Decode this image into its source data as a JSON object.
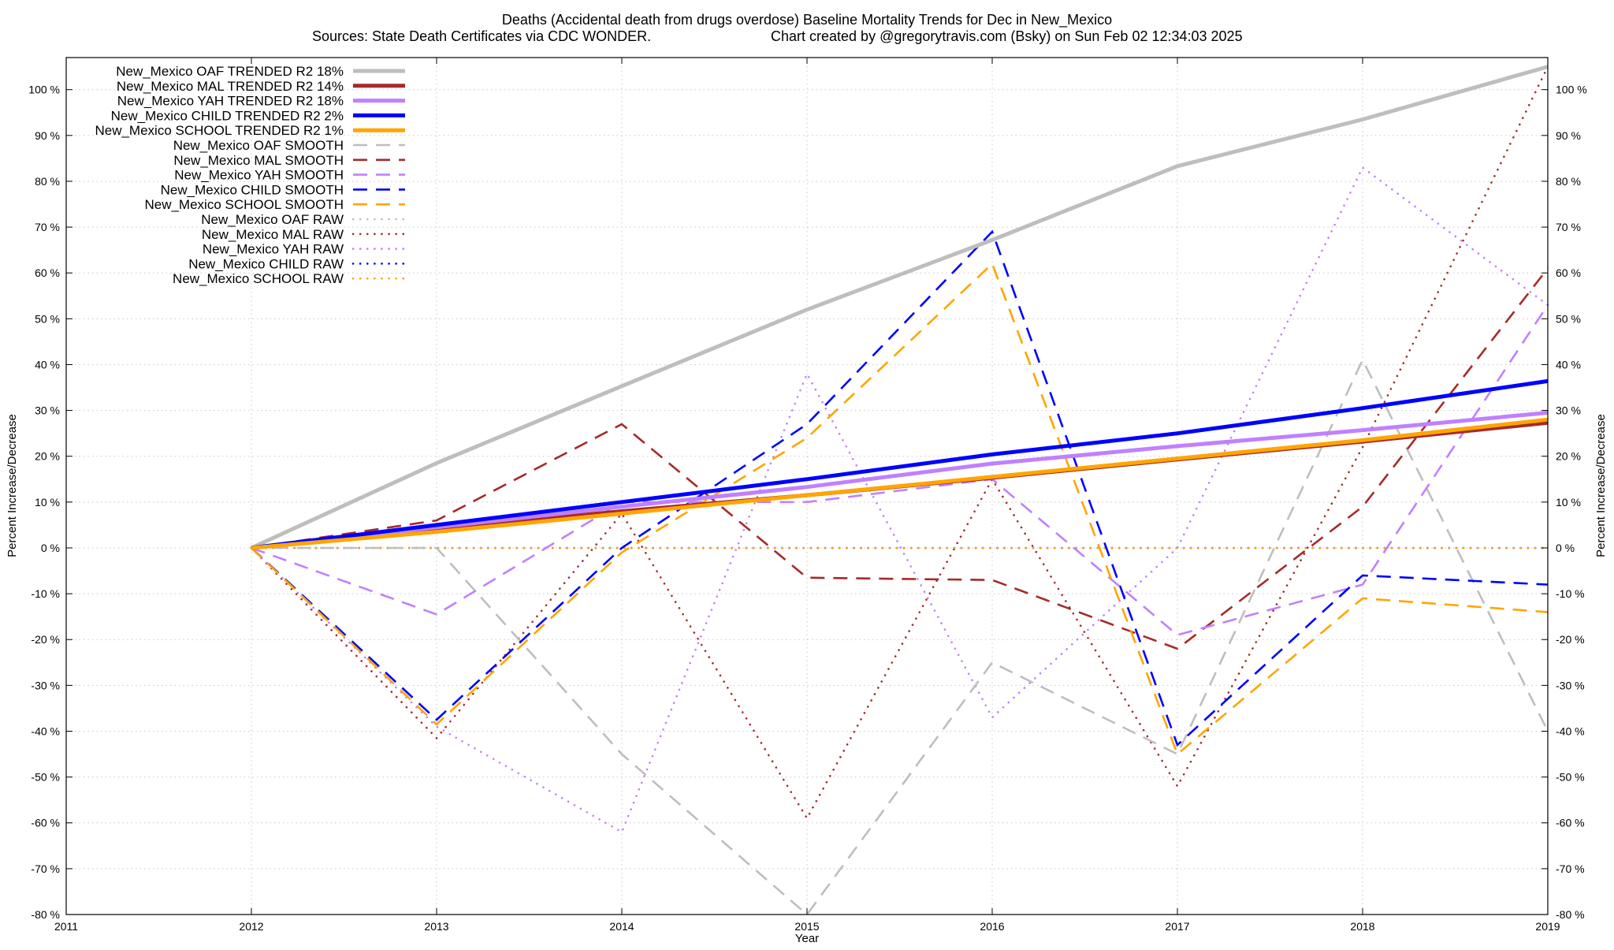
{
  "chart_data": {
    "type": "line",
    "title": "Deaths (Accidental death from drugs overdose)  Baseline Mortality Trends for Dec in New_Mexico",
    "subtitle_left": "Sources: State Death Certificates via CDC WONDER.",
    "subtitle_right": "Chart created by @gregorytravis.com (Bsky) on Sun Feb 02 12:34:03 2025",
    "xlabel": "Year",
    "ylabel_left": "Percent Increase/Decrease",
    "ylabel_right": "Percent Increase/Decrease",
    "xlim": [
      2011,
      2019
    ],
    "ylim": [
      -80,
      107
    ],
    "x_ticks": [
      "2011",
      "2012",
      "2013",
      "2014",
      "2015",
      "2016",
      "2017",
      "2018",
      "2019"
    ],
    "y_ticks": [
      "-80 %",
      "-70 %",
      "-60 %",
      "-50 %",
      "-40 %",
      "-30 %",
      "-20 %",
      "-10 %",
      "0 %",
      "10 %",
      "20 %",
      "30 %",
      "40 %",
      "50 %",
      "60 %",
      "70 %",
      "80 %",
      "90 %",
      "100 %"
    ],
    "grid": true,
    "legend_position": "top-left",
    "x": [
      2012,
      2013,
      2014,
      2015,
      2016,
      2017,
      2018,
      2019
    ],
    "series": [
      {
        "name": "New_Mexico OAF TRENDED R2  18%",
        "style": "solid",
        "color": "#bebebe",
        "values": [
          0,
          18.5,
          35.3,
          52.0,
          67.2,
          83.3,
          93.5,
          105
        ]
      },
      {
        "name": "New_Mexico MAL TRENDED R2  14%",
        "style": "solid",
        "color": "#a52a2a",
        "values": [
          0,
          4.2,
          8.0,
          11.5,
          15.3,
          19.3,
          23.2,
          27.3
        ]
      },
      {
        "name": "New_Mexico YAH TRENDED R2  18%",
        "style": "solid",
        "color": "#c080ff",
        "values": [
          0,
          4.5,
          9.0,
          13.3,
          18.4,
          22.2,
          25.7,
          29.5
        ]
      },
      {
        "name": "New_Mexico CHILD TRENDED R2  2%",
        "style": "solid",
        "color": "#0000ff",
        "values": [
          0,
          5.0,
          10.0,
          15.0,
          20.4,
          25.0,
          30.5,
          36.4
        ]
      },
      {
        "name": "New_Mexico SCHOOL TRENDED R2  1%",
        "style": "solid",
        "color": "#ffa500",
        "values": [
          0,
          3.5,
          7.5,
          11.5,
          15.5,
          19.5,
          23.5,
          28.0
        ]
      },
      {
        "name": "New_Mexico OAF SMOOTH",
        "style": "dashed",
        "color": "#bebebe",
        "values": [
          0,
          0,
          -45,
          -80,
          -25,
          -45,
          41,
          -40
        ]
      },
      {
        "name": "New_Mexico MAL SMOOTH",
        "style": "dashed",
        "color": "#a52a2a",
        "values": [
          0,
          6,
          27,
          -6.5,
          -7,
          -22,
          9,
          61
        ]
      },
      {
        "name": "New_Mexico YAH SMOOTH",
        "style": "dashed",
        "color": "#c080ff",
        "values": [
          0,
          -14.5,
          10,
          10,
          15,
          -19,
          -8,
          53
        ]
      },
      {
        "name": "New_Mexico CHILD SMOOTH",
        "style": "dashed",
        "color": "#0000ff",
        "values": [
          0,
          -37.5,
          0,
          27,
          69,
          -43,
          -6,
          -8
        ]
      },
      {
        "name": "New_Mexico SCHOOL SMOOTH",
        "style": "dashed",
        "color": "#ffa500",
        "values": [
          0,
          -38.5,
          -1,
          24,
          62,
          -45,
          -11,
          -14
        ]
      },
      {
        "name": "New_Mexico OAF RAW",
        "style": "dotted",
        "color": "#bebebe",
        "values": [
          0,
          0,
          0,
          0,
          0,
          0,
          0,
          0
        ]
      },
      {
        "name": "New_Mexico MAL RAW",
        "style": "dotted",
        "color": "#a52a2a",
        "values": [
          0,
          -41.5,
          7.5,
          -59,
          15,
          -52,
          22,
          105
        ]
      },
      {
        "name": "New_Mexico YAH RAW",
        "style": "dotted",
        "color": "#c080ff",
        "values": [
          0,
          -39,
          -62,
          38,
          -37,
          0,
          83,
          53
        ]
      },
      {
        "name": "New_Mexico CHILD RAW",
        "style": "dotted",
        "color": "#0000ff",
        "values": [
          0,
          0,
          0,
          0,
          0,
          0,
          0,
          0
        ]
      },
      {
        "name": "New_Mexico SCHOOL RAW",
        "style": "dotted",
        "color": "#ffa500",
        "values": [
          0,
          0,
          0,
          0,
          0,
          0,
          0,
          0
        ]
      }
    ]
  }
}
